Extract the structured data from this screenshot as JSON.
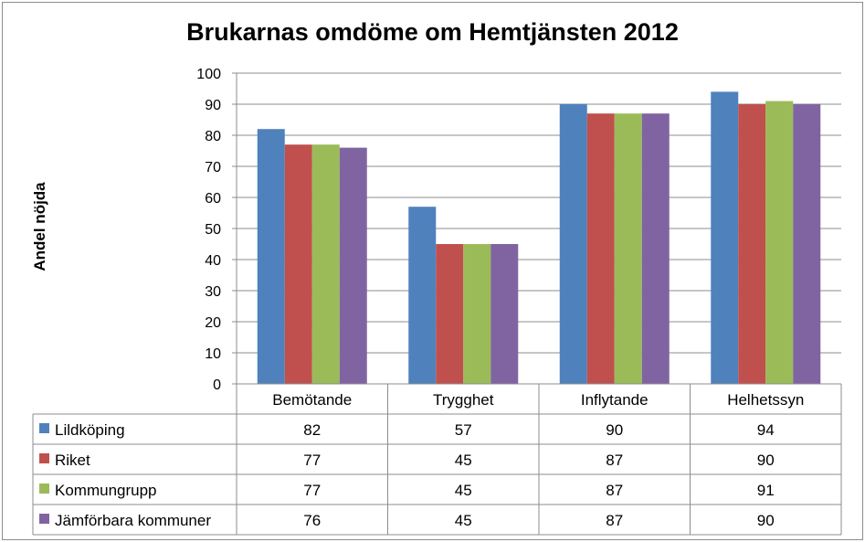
{
  "chart_data": {
    "type": "bar",
    "title": "Brukarnas omdöme om Hemtjänsten 2012",
    "ylabel": "Andel nöjda",
    "xlabel": "",
    "ylim": [
      0,
      100
    ],
    "yticks": [
      0,
      10,
      20,
      30,
      40,
      50,
      60,
      70,
      80,
      90,
      100
    ],
    "grid": true,
    "legend": "data-table-left",
    "categories": [
      "Bemötande",
      "Trygghet",
      "Inflytande",
      "Helhetssyn"
    ],
    "series": [
      {
        "name": "Lildköping",
        "color": "#4F81BD",
        "values": [
          82,
          57,
          90,
          94
        ]
      },
      {
        "name": "Riket",
        "color": "#C0504D",
        "values": [
          77,
          45,
          87,
          90
        ]
      },
      {
        "name": "Kommungrupp",
        "color": "#9BBB59",
        "values": [
          77,
          45,
          87,
          91
        ]
      },
      {
        "name": "Jämförbara kommuner",
        "color": "#8064A2",
        "values": [
          76,
          45,
          87,
          90
        ]
      }
    ]
  }
}
